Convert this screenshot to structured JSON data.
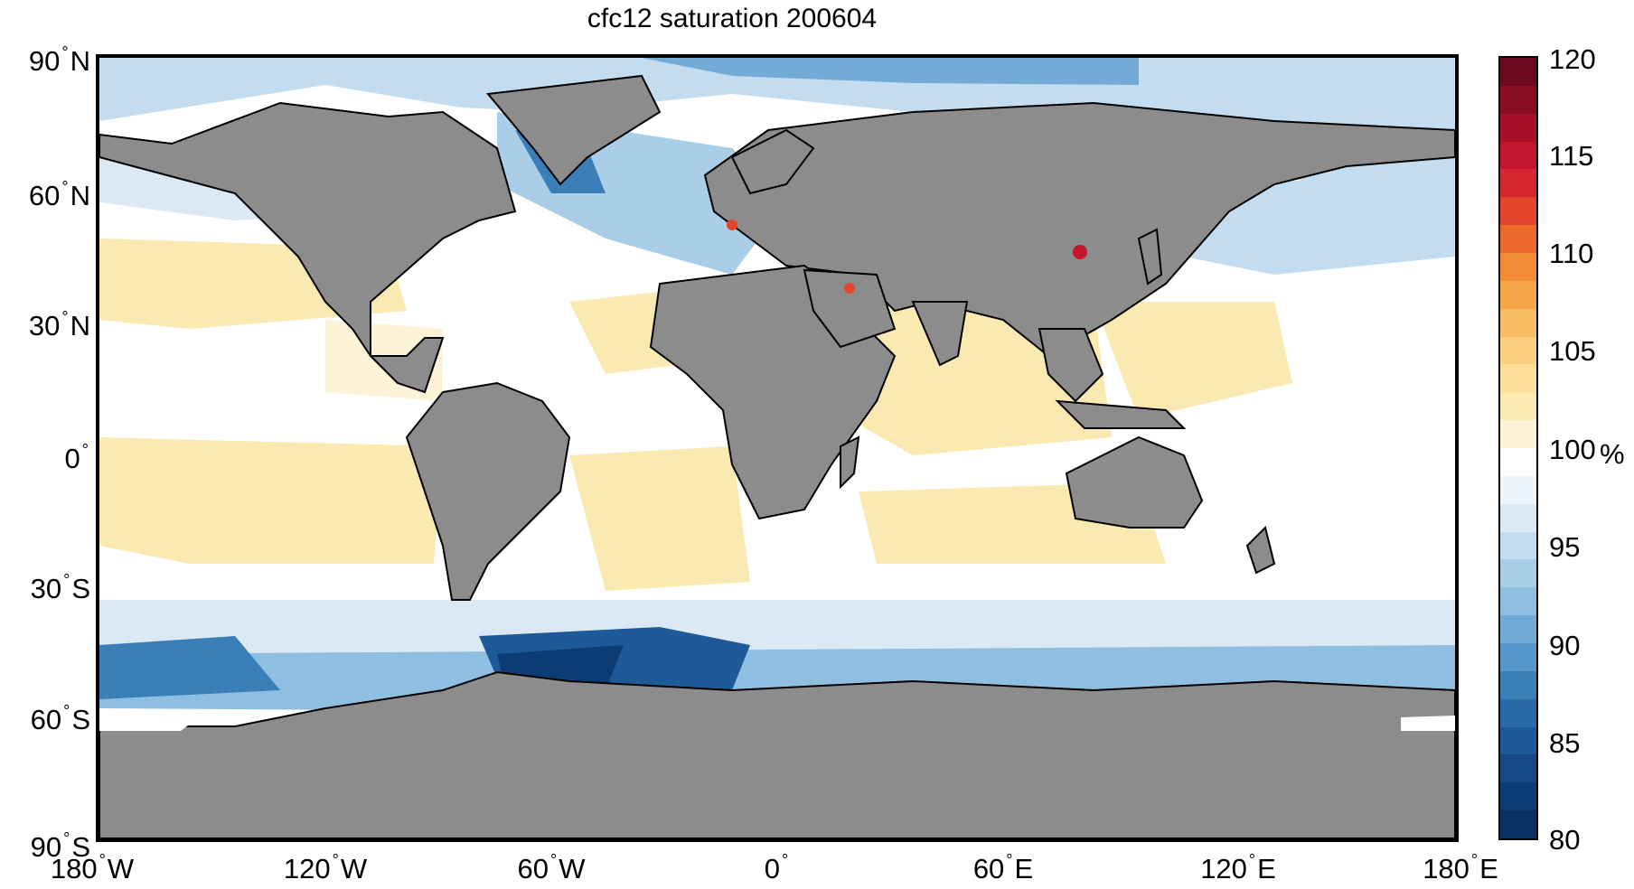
{
  "title": "cfc12 saturation 200604",
  "y_ticks": [
    {
      "label": "90",
      "hemi": "N"
    },
    {
      "label": "60",
      "hemi": "N"
    },
    {
      "label": "30",
      "hemi": "N"
    },
    {
      "label": "0",
      "hemi": ""
    },
    {
      "label": "30",
      "hemi": "S"
    },
    {
      "label": "60",
      "hemi": "S"
    },
    {
      "label": "90",
      "hemi": "S"
    }
  ],
  "x_ticks": [
    {
      "label": "180",
      "hemi": "W"
    },
    {
      "label": "120",
      "hemi": "W"
    },
    {
      "label": "60",
      "hemi": "W"
    },
    {
      "label": "0",
      "hemi": ""
    },
    {
      "label": "60",
      "hemi": "E"
    },
    {
      "label": "120",
      "hemi": "E"
    },
    {
      "label": "180",
      "hemi": "E"
    }
  ],
  "colorbar": {
    "min": 80,
    "max": 120,
    "ticks": [
      "120",
      "115",
      "110",
      "105",
      "100",
      "95",
      "90",
      "85",
      "80"
    ],
    "unit": "%"
  },
  "colors": {
    "land": "#8c8c8c",
    "coast": "#000000",
    "ocean_neutral": "#ffffff",
    "ocean_light_warm": "#fbe9b2",
    "ocean_light_cold": "#d6e7f4",
    "ocean_mid_cold": "#8fbfe0",
    "ocean_deep_cold": "#1f5f9f",
    "ocean_darkest": "#0b3a78",
    "hot_spot": "#e2452a"
  },
  "colorbar_colors": [
    "#6b0a1e",
    "#8a0d24",
    "#a8102a",
    "#c4162f",
    "#d6262f",
    "#e2452a",
    "#ec6a2c",
    "#f28a36",
    "#f6a548",
    "#f8bd62",
    "#fad07e",
    "#fbde99",
    "#fbe9b2",
    "#fdf4d8",
    "#ffffff",
    "#eef5fb",
    "#dbe9f5",
    "#c4dcef",
    "#aacde8",
    "#8fbfe0",
    "#72acd6",
    "#5696c8",
    "#3b7fb8",
    "#2a6aa8",
    "#1f5a98",
    "#154a86",
    "#0d3c74",
    "#0a3063"
  ]
}
